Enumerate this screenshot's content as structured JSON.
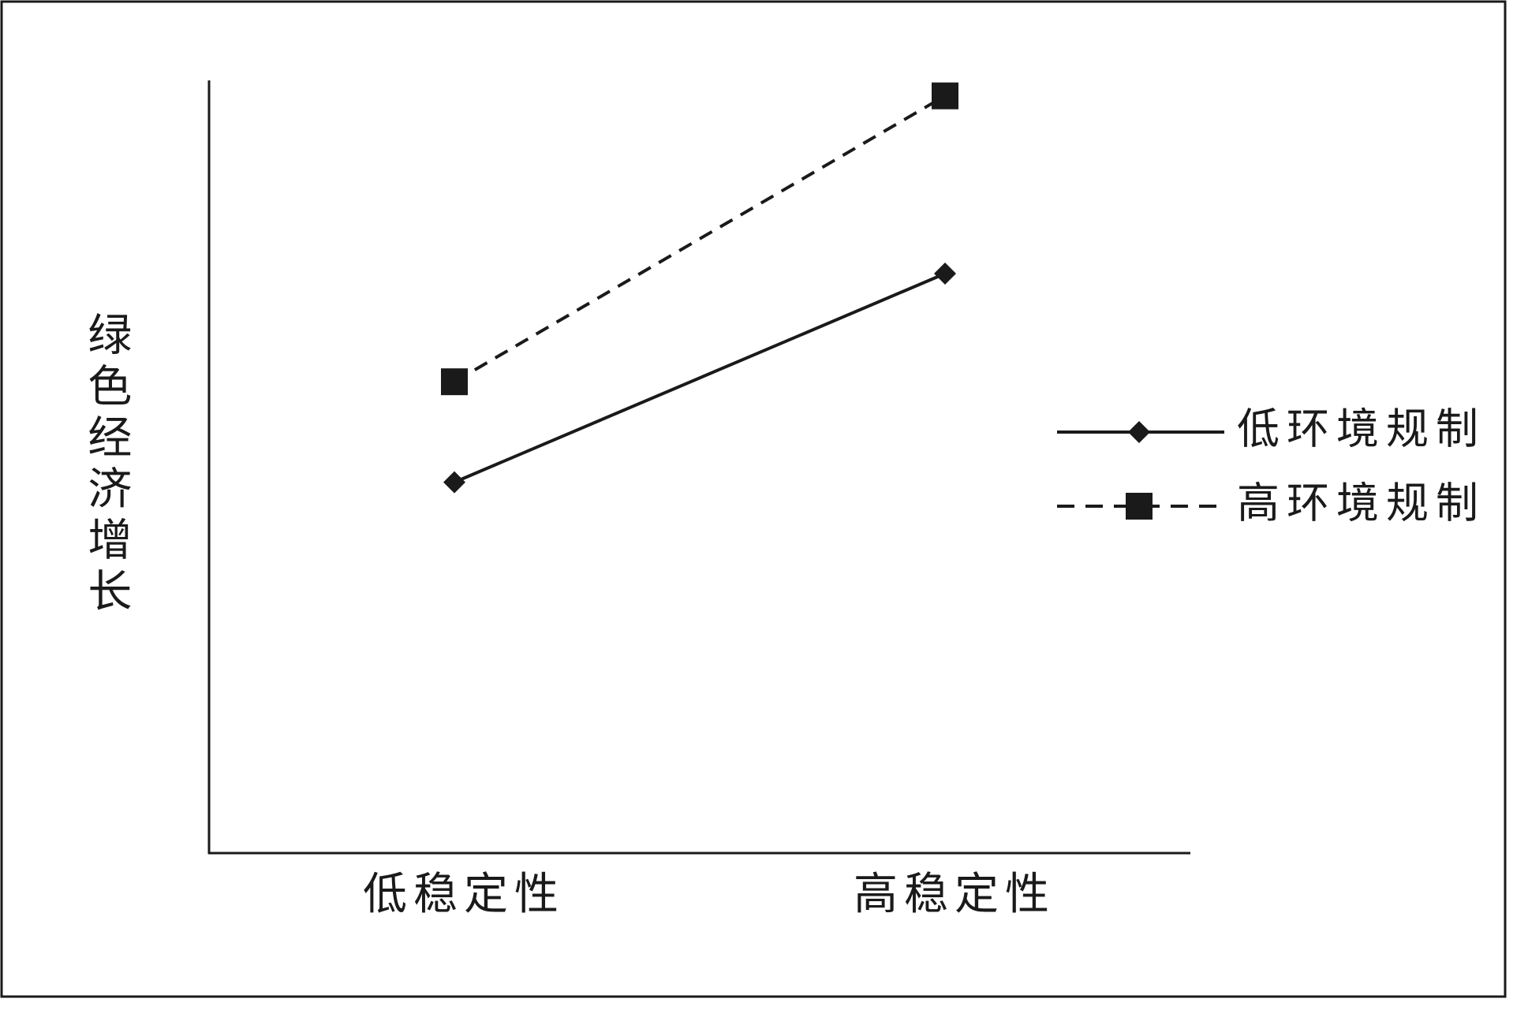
{
  "chart_data": {
    "type": "line",
    "y_label": "绿色经济增长",
    "categories": [
      "低稳定性",
      "高稳定性"
    ],
    "series": [
      {
        "name": "低环境规制",
        "color": "#1a1a1a",
        "line_style": "solid",
        "marker": "diamond",
        "values": [
          4.8,
          7.5
        ]
      },
      {
        "name": "高环境规制",
        "color": "#1a1a1a",
        "line_style": "dashed",
        "marker": "square",
        "values": [
          6.1,
          9.8
        ]
      }
    ],
    "ylim": [
      0,
      10
    ],
    "legend": "right"
  }
}
